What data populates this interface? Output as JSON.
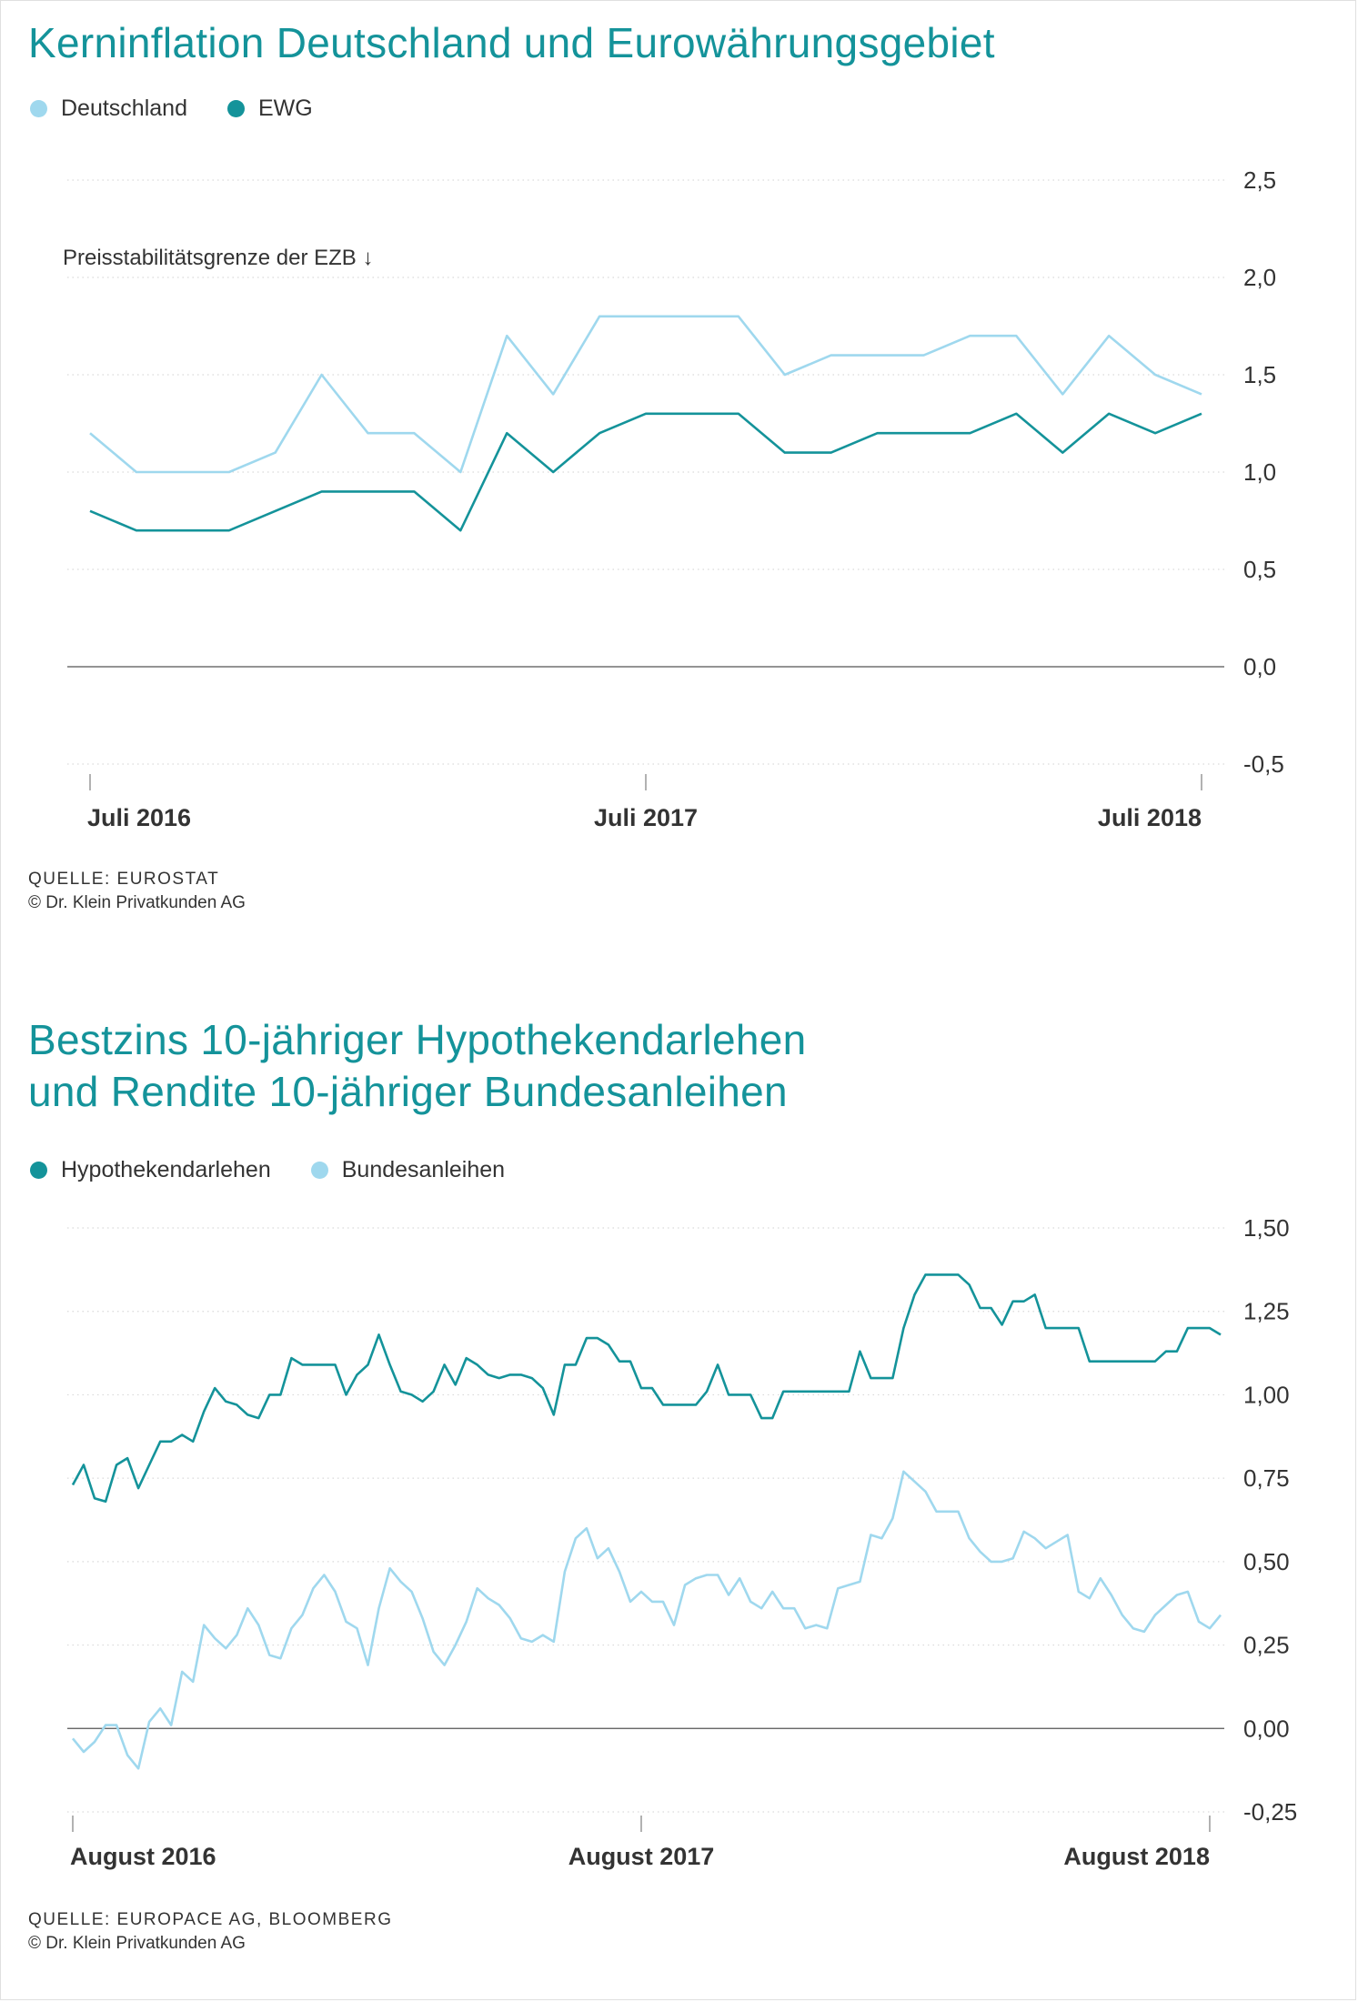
{
  "colors": {
    "title": "#14939a",
    "deutschland": "#9fd8ee",
    "ewg": "#14939a",
    "hypothekendarlehen": "#14939a",
    "bundesanleihen": "#9fd8ee",
    "grid": "#d9d9d9",
    "zero_line": "#555555",
    "text": "#333333"
  },
  "chart_data": [
    {
      "type": "line",
      "title": "Kerninflation Deutschland und Eurowährungsgebiet",
      "ylim": [
        -0.5,
        2.5
      ],
      "yticks": [
        -0.5,
        0.0,
        0.5,
        1.0,
        1.5,
        2.0,
        2.5
      ],
      "ytick_labels": [
        "-0,5",
        "0,0",
        "0,5",
        "1,0",
        "1,5",
        "2,0",
        "2,5"
      ],
      "x_tick_labels": [
        "Juli 2016",
        "Juli 2017",
        "Juli 2018"
      ],
      "x_tick_index": [
        0,
        12,
        24
      ],
      "grid": true,
      "legend_position": "top-left",
      "annotation": "Preisstabilitätsgrenze der EZB ↓",
      "series": [
        {
          "name": "Deutschland",
          "color_key": "deutschland",
          "values": [
            1.2,
            1.0,
            1.0,
            1.0,
            1.1,
            1.5,
            1.2,
            1.2,
            1.0,
            1.7,
            1.4,
            1.8,
            1.8,
            1.8,
            1.8,
            1.5,
            1.6,
            1.6,
            1.6,
            1.7,
            1.7,
            1.4,
            1.7,
            1.5,
            1.4
          ]
        },
        {
          "name": "EWG",
          "color_key": "ewg",
          "values": [
            0.8,
            0.7,
            0.7,
            0.7,
            0.8,
            0.9,
            0.9,
            0.9,
            0.7,
            1.2,
            1.0,
            1.2,
            1.3,
            1.3,
            1.3,
            1.1,
            1.1,
            1.2,
            1.2,
            1.2,
            1.3,
            1.1,
            1.3,
            1.2,
            1.3
          ]
        }
      ],
      "source": "QUELLE: EUROSTAT",
      "copyright": "© Dr. Klein Privatkunden AG"
    },
    {
      "type": "line",
      "title": "Bestzins 10-jähriger Hypothekendarlehen und Rendite 10-jähriger Bundesanleihen",
      "title_lines": [
        "Bestzins 10-jähriger Hypothekendarlehen",
        "und Rendite 10-jähriger Bundesanleihen"
      ],
      "ylim": [
        -0.25,
        1.5
      ],
      "yticks": [
        -0.25,
        0.0,
        0.25,
        0.5,
        0.75,
        1.0,
        1.25,
        1.5
      ],
      "ytick_labels": [
        "-0,25",
        "0,00",
        "0,25",
        "0,50",
        "0,75",
        "1,00",
        "1,25",
        "1,50"
      ],
      "x_tick_labels": [
        "August 2016",
        "August 2017",
        "August 2018"
      ],
      "x_tick_index": [
        0,
        52,
        104
      ],
      "grid": true,
      "legend_position": "top-left",
      "series": [
        {
          "name": "Hypothekendarlehen",
          "color_key": "hypothekendarlehen",
          "values": [
            0.73,
            0.79,
            0.69,
            0.68,
            0.79,
            0.81,
            0.72,
            0.79,
            0.86,
            0.86,
            0.88,
            0.86,
            0.95,
            1.02,
            0.98,
            0.97,
            0.94,
            0.93,
            1.0,
            1.0,
            1.11,
            1.09,
            1.09,
            1.09,
            1.09,
            1.0,
            1.06,
            1.09,
            1.18,
            1.09,
            1.01,
            1.0,
            0.98,
            1.01,
            1.09,
            1.03,
            1.11,
            1.09,
            1.06,
            1.05,
            1.06,
            1.06,
            1.05,
            1.02,
            0.94,
            1.09,
            1.09,
            1.17,
            1.17,
            1.15,
            1.1,
            1.1,
            1.02,
            1.02,
            0.97,
            0.97,
            0.97,
            0.97,
            1.01,
            1.09,
            1.0,
            1.0,
            1.0,
            0.93,
            0.93,
            1.01,
            1.01,
            1.01,
            1.01,
            1.01,
            1.01,
            1.01,
            1.13,
            1.05,
            1.05,
            1.05,
            1.2,
            1.3,
            1.36,
            1.36,
            1.36,
            1.36,
            1.33,
            1.26,
            1.26,
            1.21,
            1.28,
            1.28,
            1.3,
            1.2,
            1.2,
            1.2,
            1.2,
            1.1,
            1.1,
            1.1,
            1.1,
            1.1,
            1.1,
            1.1,
            1.13,
            1.13,
            1.2,
            1.2,
            1.2,
            1.18
          ]
        },
        {
          "name": "Bundesanleihen",
          "color_key": "bundesanleihen",
          "values": [
            -0.03,
            -0.07,
            -0.04,
            0.01,
            0.01,
            -0.08,
            -0.12,
            0.02,
            0.06,
            0.01,
            0.17,
            0.14,
            0.31,
            0.27,
            0.24,
            0.28,
            0.36,
            0.31,
            0.22,
            0.21,
            0.3,
            0.34,
            0.42,
            0.46,
            0.41,
            0.32,
            0.3,
            0.19,
            0.36,
            0.48,
            0.44,
            0.41,
            0.33,
            0.23,
            0.19,
            0.25,
            0.32,
            0.42,
            0.39,
            0.37,
            0.33,
            0.27,
            0.26,
            0.28,
            0.26,
            0.47,
            0.57,
            0.6,
            0.51,
            0.54,
            0.47,
            0.38,
            0.41,
            0.38,
            0.38,
            0.31,
            0.43,
            0.45,
            0.46,
            0.46,
            0.4,
            0.45,
            0.38,
            0.36,
            0.41,
            0.36,
            0.36,
            0.3,
            0.31,
            0.3,
            0.42,
            0.43,
            0.44,
            0.58,
            0.57,
            0.63,
            0.77,
            0.74,
            0.71,
            0.65,
            0.65,
            0.65,
            0.57,
            0.53,
            0.5,
            0.5,
            0.51,
            0.59,
            0.57,
            0.54,
            0.56,
            0.58,
            0.41,
            0.39,
            0.45,
            0.4,
            0.34,
            0.3,
            0.29,
            0.34,
            0.37,
            0.4,
            0.41,
            0.32,
            0.3,
            0.34
          ]
        }
      ],
      "source": "QUELLE: EUROPACE AG, BLOOMBERG",
      "copyright": "© Dr. Klein Privatkunden AG"
    }
  ]
}
